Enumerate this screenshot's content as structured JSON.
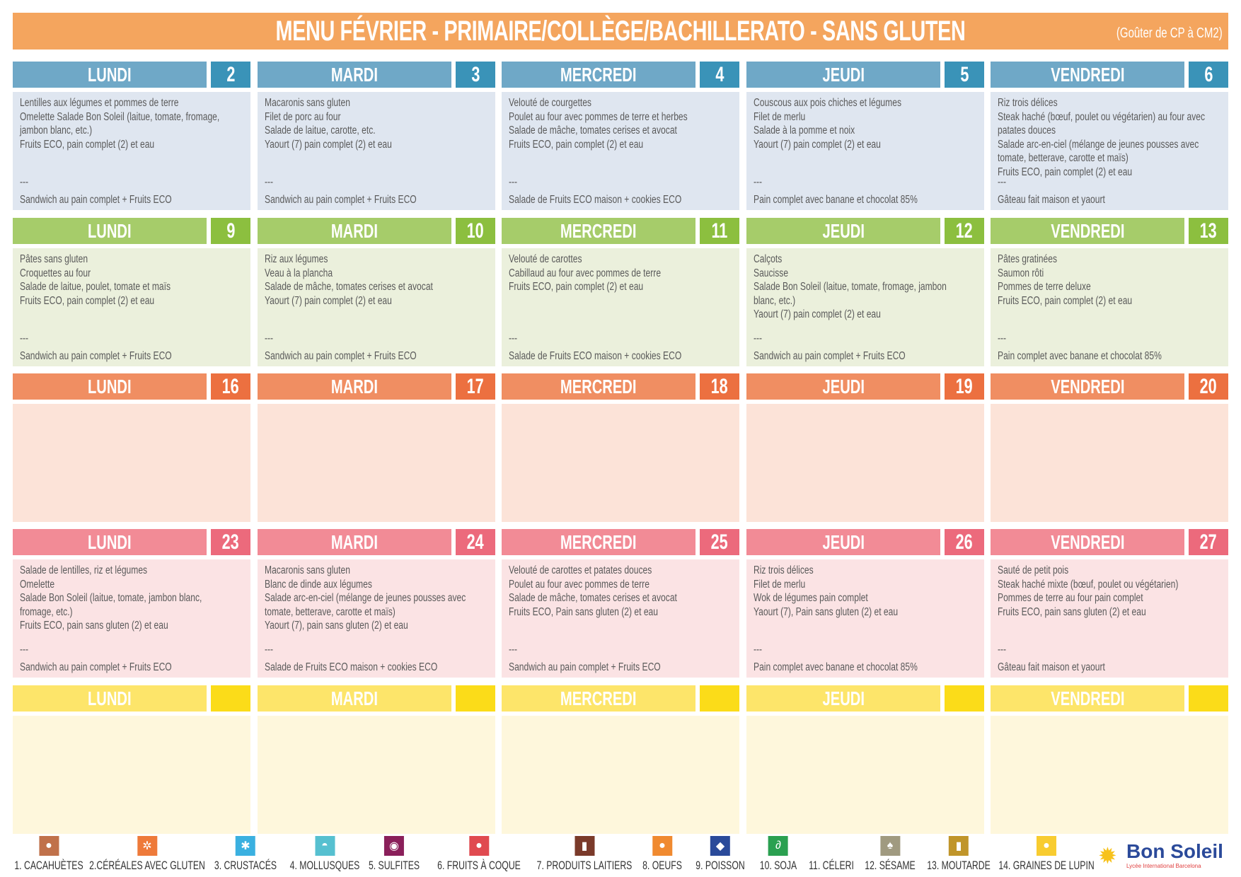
{
  "header": {
    "title": "MENU FÉVRIER - PRIMAIRE/COLLÈGE/BACHILLERATO - SANS GLUTEN",
    "subtitle": "(Goûter de CP à CM2)"
  },
  "themes": [
    {
      "head": "#6fa8c7",
      "num": "#3a93b8",
      "body": "#dfe6f0"
    },
    {
      "head": "#a6cc6a",
      "num": "#8cbf3f",
      "body": "#ebf0dc"
    },
    {
      "head": "#f08e62",
      "num": "#ec7040",
      "body": "#fce3d8"
    },
    {
      "head": "#f28b96",
      "num": "#ec6a7c",
      "body": "#fbe3e4"
    },
    {
      "head": "#fde56a",
      "num": "#fbdc19",
      "body": "#fef7dc"
    }
  ],
  "weeks": [
    {
      "days": [
        {
          "name": "LUNDI",
          "num": "2",
          "lines": [
            "Lentilles aux légumes et pommes de terre",
            "Omelette  Salade Bon Soleil (laitue, tomate, fromage,",
            "jambon blanc, etc.)",
            "Fruits ECO, pain complet (2) et eau"
          ],
          "sep": "---",
          "snack": "Sandwich au pain complet + Fruits ECO"
        },
        {
          "name": "MARDI",
          "num": "3",
          "lines": [
            "Macaronis sans gluten",
            "Filet de porc au four",
            "Salade de laitue, carotte, etc.",
            "Yaourt (7) pain complet (2) et eau"
          ],
          "sep": "---",
          "snack": "Sandwich au pain complet + Fruits ECO"
        },
        {
          "name": "MERCREDI",
          "num": "4",
          "lines": [
            "Velouté de courgettes",
            "Poulet au four avec pommes de terre et herbes",
            "Salade de mâche, tomates cerises et avocat",
            "Fruits ECO, pain complet (2) et eau"
          ],
          "sep": "---",
          "snack": "Salade de Fruits ECO maison + cookies ECO"
        },
        {
          "name": "JEUDI",
          "num": "5",
          "lines": [
            "Couscous aux pois chiches et légumes",
            "Filet de merlu",
            "Salade à la pomme et noix",
            "Yaourt (7) pain complet (2) et eau"
          ],
          "sep": "---",
          "snack": "Pain complet avec banane et chocolat 85%"
        },
        {
          "name": "VENDREDI",
          "num": "6",
          "lines": [
            "Riz trois délices",
            "Steak haché (bœuf, poulet ou végétarien) au four avec",
            "patates douces",
            "Salade arc-en-ciel (mélange de jeunes pousses avec",
            "tomate, betterave, carotte et maïs)",
            "Fruits ECO, pain complet (2) et eau"
          ],
          "sep": "---",
          "snack": "Gâteau fait maison et yaourt"
        }
      ]
    },
    {
      "days": [
        {
          "name": "LUNDI",
          "num": "9",
          "lines": [
            "Pâtes sans gluten",
            "Croquettes au four",
            "Salade de laitue, poulet, tomate et maïs",
            "Fruits ECO, pain complet (2) et eau"
          ],
          "sep": "---",
          "snack": "Sandwich au pain complet + Fruits ECO"
        },
        {
          "name": "MARDI",
          "num": "10",
          "lines": [
            "Riz aux légumes",
            "Veau à la plancha",
            "Salade de mâche, tomates cerises et avocat",
            "Yaourt (7) pain complet (2) et eau"
          ],
          "sep": "---",
          "snack": "Sandwich au pain complet + Fruits ECO"
        },
        {
          "name": "MERCREDI",
          "num": "11",
          "lines": [
            "Velouté de carottes",
            "Cabillaud au four avec pommes de terre",
            "Fruits ECO, pain complet (2) et eau"
          ],
          "sep": "---",
          "snack": "Salade de Fruits ECO maison + cookies ECO"
        },
        {
          "name": "JEUDI",
          "num": "12",
          "lines": [
            "Calçots",
            "Saucisse",
            "Salade Bon Soleil (laitue, tomate, fromage, jambon",
            "blanc, etc.)",
            "Yaourt (7) pain complet (2) et eau"
          ],
          "sep": "---",
          "snack": "Sandwich au pain complet + Fruits ECO"
        },
        {
          "name": "VENDREDI",
          "num": "13",
          "lines": [
            "Pâtes gratinées",
            "Saumon rôti",
            "Pommes de terre deluxe",
            "Fruits ECO, pain complet (2) et eau"
          ],
          "sep": "---",
          "snack": "Pain complet avec banane et chocolat 85%"
        }
      ]
    },
    {
      "days": [
        {
          "name": "LUNDI",
          "num": "16",
          "lines": [],
          "sep": "",
          "snack": ""
        },
        {
          "name": "MARDI",
          "num": "17",
          "lines": [],
          "sep": "",
          "snack": ""
        },
        {
          "name": "MERCREDI",
          "num": "18",
          "lines": [],
          "sep": "",
          "snack": ""
        },
        {
          "name": "JEUDI",
          "num": "19",
          "lines": [],
          "sep": "",
          "snack": ""
        },
        {
          "name": "VENDREDI",
          "num": "20",
          "lines": [],
          "sep": "",
          "snack": ""
        }
      ]
    },
    {
      "days": [
        {
          "name": "LUNDI",
          "num": "23",
          "lines": [
            "Salade de lentilles, riz et légumes",
            "Omelette",
            "Salade Bon Soleil (laitue, tomate, jambon blanc,",
            "fromage, etc.)",
            "Fruits ECO, pain sans gluten (2) et eau"
          ],
          "sep": "---",
          "snack": "Sandwich au pain complet + Fruits ECO"
        },
        {
          "name": "MARDI",
          "num": "24",
          "lines": [
            "Macaronis sans gluten",
            "Blanc de dinde aux légumes",
            "Salade arc-en-ciel (mélange de jeunes pousses avec",
            "tomate, betterave, carotte et maïs)",
            "Yaourt (7), pain sans gluten (2) et eau"
          ],
          "sep": "---",
          "snack": "Salade de Fruits ECO maison + cookies ECO"
        },
        {
          "name": "MERCREDI",
          "num": "25",
          "lines": [
            "Velouté de carottes et patates douces",
            "Poulet au four avec pommes de terre",
            "Salade de mâche, tomates cerises et avocat",
            "Fruits ECO, Pain sans gluten (2) et eau"
          ],
          "sep": "---",
          "snack": "Sandwich au pain complet + Fruits ECO"
        },
        {
          "name": "JEUDI",
          "num": "26",
          "lines": [
            "Riz trois délices",
            "Filet de merlu",
            "Wok de légumes pain complet",
            "Yaourt (7), Pain sans gluten (2) et eau"
          ],
          "sep": "---",
          "snack": "Pain complet avec banane et chocolat 85%"
        },
        {
          "name": "VENDREDI",
          "num": "27",
          "lines": [
            "Sauté de petit pois",
            "Steak haché mixte (bœuf, poulet ou végétarien)",
            "Pommes de terre au four pain complet",
            "Fruits ECO, pain sans gluten (2) et eau"
          ],
          "sep": "---",
          "snack": "Gâteau fait maison et yaourt"
        }
      ]
    },
    {
      "days": [
        {
          "name": "LUNDI",
          "num": "",
          "lines": [],
          "sep": "",
          "snack": ""
        },
        {
          "name": "MARDI",
          "num": "",
          "lines": [],
          "sep": "",
          "snack": ""
        },
        {
          "name": "MERCREDI",
          "num": "",
          "lines": [],
          "sep": "",
          "snack": ""
        },
        {
          "name": "JEUDI",
          "num": "",
          "lines": [],
          "sep": "",
          "snack": ""
        },
        {
          "name": "VENDREDI",
          "num": "",
          "lines": [],
          "sep": "",
          "snack": ""
        }
      ]
    }
  ],
  "allergens": [
    {
      "label": "1. CACAHUÈTES",
      "icon": "peanut-icon",
      "color": "#c0714a",
      "glyph": "●"
    },
    {
      "label": "2.CÉRÉALES AVEC GLUTEN",
      "icon": "wheat-icon",
      "color": "#ee7a3a",
      "glyph": "✲"
    },
    {
      "label": "3. CRUSTACÉS",
      "icon": "crab-icon",
      "color": "#3ab0e0",
      "glyph": "✱"
    },
    {
      "label": "4. MOLLUSQUES",
      "icon": "shell-icon",
      "color": "#56c0d0",
      "glyph": "◓"
    },
    {
      "label": "5. SULFITES",
      "icon": "sulfite-icon",
      "color": "#8a1f5a",
      "glyph": "◉"
    },
    {
      "label": "6. FRUITS À COQUE",
      "icon": "acorn-icon",
      "color": "#e04a50",
      "glyph": "●"
    },
    {
      "label": "7. PRODUITS LAITIERS",
      "icon": "milk-bottle-icon",
      "color": "#7a3a2a",
      "glyph": "▮"
    },
    {
      "label": "8. OEUFS",
      "icon": "eggs-icon",
      "color": "#f08a30",
      "glyph": "●"
    },
    {
      "label": "9. POISSON",
      "icon": "fish-icon",
      "color": "#2a4a9a",
      "glyph": "◆"
    },
    {
      "label": "10. SOJA",
      "icon": "soy-icon",
      "color": "#2aa050",
      "glyph": "∂"
    },
    {
      "label": "11. CÉLERI",
      "icon": "",
      "color": "",
      "glyph": ""
    },
    {
      "label": "12. SÉSAME",
      "icon": "sesame-icon",
      "color": "#a09a80",
      "glyph": "♠"
    },
    {
      "label": "13. MOUTARDE",
      "icon": "mustard-icon",
      "color": "#c0952a",
      "glyph": "▮"
    },
    {
      "label": "14. GRAINES DE LUPIN",
      "icon": "lupin-icon",
      "color": "#f8cc30",
      "glyph": "●"
    }
  ],
  "logo": {
    "name": "Bon Soleil",
    "sub": "Lycée International Barcelona"
  }
}
